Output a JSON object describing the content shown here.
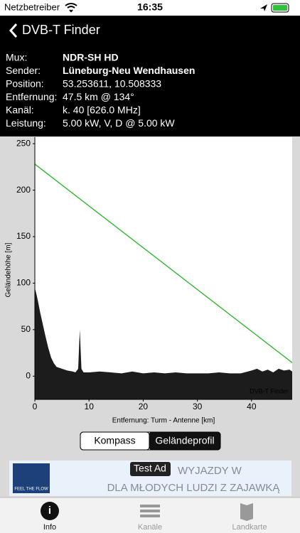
{
  "status_bar": {
    "carrier": "Netzbetreiber",
    "time": "16:35"
  },
  "nav": {
    "title": "DVB-T Finder"
  },
  "info": {
    "rows": [
      [
        "Mux:",
        "NDR-SH HD"
      ],
      [
        "Sender:",
        "Lüneburg-Neu Wendhausen"
      ],
      [
        "Position:",
        "53.253611, 10.508333"
      ],
      [
        "Entfernung:",
        "47.5 km @ 134°"
      ],
      [
        "Kanäl:",
        "k. 40 [626.0 MHz]"
      ],
      [
        "Leistung:",
        "5.00 kW, V, D @ 5.00 kW"
      ]
    ]
  },
  "chart_data": {
    "type": "area",
    "annotation": "DVB-T Finder",
    "x_label": "Entfernung: Turm - Antenne [km]",
    "y_label": "Geländehöhe [m]",
    "xlim": [
      0,
      47.5
    ],
    "ylim": [
      -25,
      257
    ],
    "xticks": [
      0,
      10,
      20,
      30,
      40
    ],
    "yticks": [
      0,
      50,
      100,
      150,
      200,
      250
    ],
    "grid": false,
    "series": [
      {
        "color": "#1c1c1c",
        "x": [
          0,
          0.3,
          0.6,
          1,
          1.5,
          2,
          2.5,
          3,
          3.5,
          4,
          5,
          6,
          7,
          7.5,
          8,
          8.3,
          8.6,
          9,
          10,
          12,
          14,
          16,
          18,
          20,
          22,
          24,
          26,
          28,
          30,
          32,
          34,
          36,
          38,
          40,
          41,
          42,
          43,
          44,
          45,
          46,
          47,
          47.5
        ],
        "values": [
          95,
          88,
          80,
          68,
          55,
          42,
          30,
          20,
          14,
          10,
          8,
          6,
          5,
          4,
          8,
          50,
          8,
          4,
          4,
          5,
          4,
          3,
          5,
          3,
          4,
          3,
          4,
          3,
          3,
          3,
          4,
          3,
          3,
          6,
          8,
          5,
          7,
          4,
          8,
          6,
          7,
          5
        ]
      },
      {
        "type": "line",
        "color": "#22b522",
        "x": [
          0,
          47.5
        ],
        "values": [
          228,
          14.5
        ]
      }
    ]
  },
  "segmented": {
    "options": [
      "Kompass",
      "Geländeprofil"
    ],
    "selected": 1
  },
  "ad": {
    "badge": "Test Ad",
    "line1": "WYJAZDY W",
    "line2": "DLA MŁODYCH LUDZI Z ZAJAWKĄ",
    "brand": "FEEL THE FLOW"
  },
  "tab_bar": {
    "items": [
      "Info",
      "Kanäle",
      "Landkarte"
    ]
  }
}
